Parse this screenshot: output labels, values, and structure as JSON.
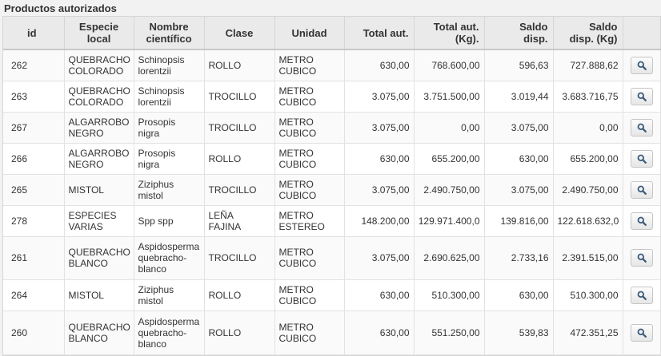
{
  "panel_title": "Productos autorizados",
  "columns": {
    "id": "id",
    "especie": [
      "Especie",
      "local"
    ],
    "nombre": [
      "Nombre",
      "científico"
    ],
    "clase": "Clase",
    "unidad": "Unidad",
    "total_aut": "Total aut.",
    "total_kg": [
      "Total aut.",
      "(Kg)."
    ],
    "saldo": [
      "Saldo",
      "disp."
    ],
    "saldo_kg": [
      "Saldo",
      "disp. (Kg)"
    ]
  },
  "rows": [
    {
      "id": "262",
      "especie": [
        "QUEBRACHO",
        "COLORADO"
      ],
      "nombre": [
        "Schinopsis",
        "lorentzii"
      ],
      "clase": [
        "ROLLO"
      ],
      "unidad": [
        "METRO",
        "CUBICO"
      ],
      "total_aut": "630,00",
      "total_kg": "768.600,00",
      "saldo": "596,63",
      "saldo_kg": "727.888,62"
    },
    {
      "id": "263",
      "especie": [
        "QUEBRACHO",
        "COLORADO"
      ],
      "nombre": [
        "Schinopsis",
        "lorentzii"
      ],
      "clase": [
        "TROCILLO"
      ],
      "unidad": [
        "METRO",
        "CUBICO"
      ],
      "total_aut": "3.075,00",
      "total_kg": "3.751.500,00",
      "saldo": "3.019,44",
      "saldo_kg": "3.683.716,75"
    },
    {
      "id": "267",
      "especie": [
        "ALGARROBO",
        "NEGRO"
      ],
      "nombre": [
        "Prosopis",
        "nigra"
      ],
      "clase": [
        "TROCILLO"
      ],
      "unidad": [
        "METRO",
        "CUBICO"
      ],
      "total_aut": "3.075,00",
      "total_kg": "0,00",
      "saldo": "3.075,00",
      "saldo_kg": "0,00"
    },
    {
      "id": "266",
      "especie": [
        "ALGARROBO",
        "NEGRO"
      ],
      "nombre": [
        "Prosopis",
        "nigra"
      ],
      "clase": [
        "ROLLO"
      ],
      "unidad": [
        "METRO",
        "CUBICO"
      ],
      "total_aut": "630,00",
      "total_kg": "655.200,00",
      "saldo": "630,00",
      "saldo_kg": "655.200,00"
    },
    {
      "id": "265",
      "especie": [
        "MISTOL"
      ],
      "nombre": [
        "Ziziphus",
        "mistol"
      ],
      "clase": [
        "TROCILLO"
      ],
      "unidad": [
        "METRO",
        "CUBICO"
      ],
      "total_aut": "3.075,00",
      "total_kg": "2.490.750,00",
      "saldo": "3.075,00",
      "saldo_kg": "2.490.750,00"
    },
    {
      "id": "278",
      "especie": [
        "ESPECIES",
        "VARIAS"
      ],
      "nombre": [
        "Spp spp"
      ],
      "clase": [
        "LEÑA",
        "FAJINA"
      ],
      "unidad": [
        "METRO",
        "ESTEREO"
      ],
      "total_aut": "148.200,00",
      "total_kg": "129.971.400,0",
      "saldo": "139.816,00",
      "saldo_kg": "122.618.632,0"
    },
    {
      "id": "261",
      "especie": [
        "QUEBRACHO",
        "BLANCO"
      ],
      "nombre": [
        "Aspidosperma",
        "quebracho-",
        "blanco"
      ],
      "clase": [
        "TROCILLO"
      ],
      "unidad": [
        "METRO",
        "CUBICO"
      ],
      "total_aut": "3.075,00",
      "total_kg": "2.690.625,00",
      "saldo": "2.733,16",
      "saldo_kg": "2.391.515,00"
    },
    {
      "id": "264",
      "especie": [
        "MISTOL"
      ],
      "nombre": [
        "Ziziphus",
        "mistol"
      ],
      "clase": [
        "ROLLO"
      ],
      "unidad": [
        "METRO",
        "CUBICO"
      ],
      "total_aut": "630,00",
      "total_kg": "510.300,00",
      "saldo": "630,00",
      "saldo_kg": "510.300,00"
    },
    {
      "id": "260",
      "especie": [
        "QUEBRACHO",
        "BLANCO"
      ],
      "nombre": [
        "Aspidosperma",
        "quebracho-",
        "blanco"
      ],
      "clase": [
        "ROLLO"
      ],
      "unidad": [
        "METRO",
        "CUBICO"
      ],
      "total_aut": "630,00",
      "total_kg": "551.250,00",
      "saldo": "539,83",
      "saldo_kg": "472.351,25"
    }
  ],
  "action_icon": "search-icon"
}
